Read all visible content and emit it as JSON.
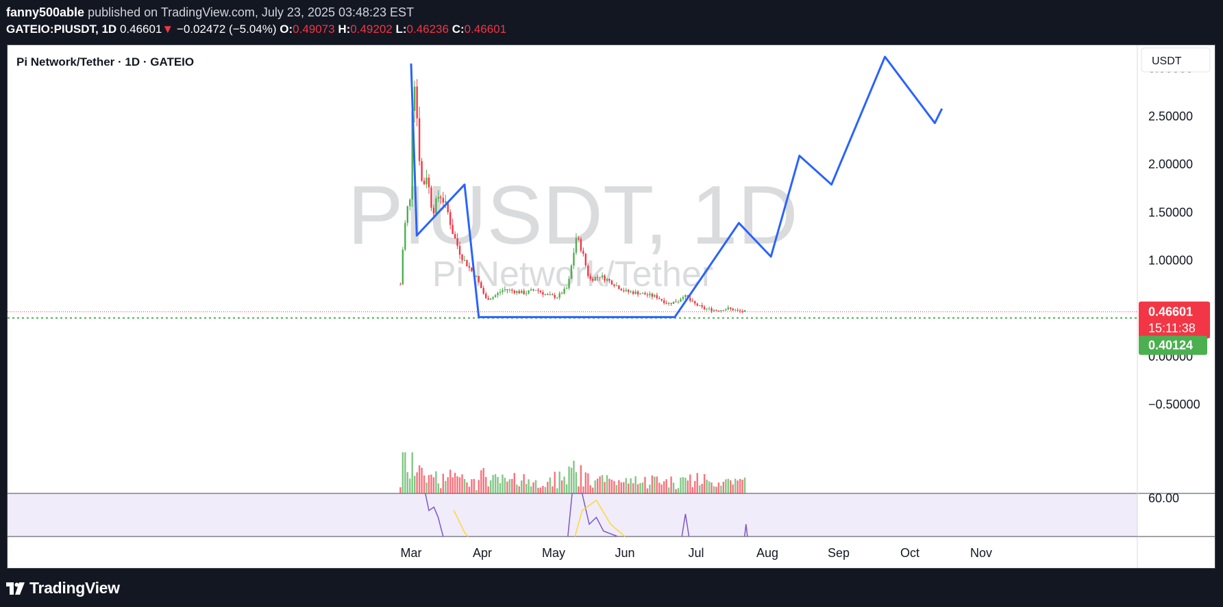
{
  "header": {
    "author": "fanny500able",
    "published": "published on TradingView.com, July 23, 2025 03:48:23 EST"
  },
  "symbol_line": {
    "symbol": "GATEIO:PIUSDT, 1D",
    "last": "0.46601",
    "arrow": "▼",
    "change": "−0.02472 (−5.04%)",
    "open_label": "O:",
    "open": "0.49073",
    "high_label": "H:",
    "high": "0.49202",
    "low_label": "L:",
    "low": "0.46236",
    "close_label": "C:",
    "close": "0.46601"
  },
  "pane": {
    "title": "Pi Network/Tether · 1D · GATEIO",
    "currency_button": "USDT",
    "watermark_symbol": "PIUSDT, 1D",
    "watermark_name": "Pi Network/Tether",
    "price_badge": "0.46601",
    "countdown": "15:11:38",
    "support_badge": "0.40124",
    "rsi_level": "60.00"
  },
  "footer": {
    "logo_text": "TradingView"
  },
  "colors": {
    "background": "#131722",
    "up": "#4caf50",
    "down": "#f23645",
    "projection": "#2962ff",
    "rsi_band": "#f0ecfa",
    "rsi_line": "#7e57c2",
    "rsi_ma": "#fdd835"
  },
  "chart_data": {
    "type": "candlestick",
    "symbol": "PIUSDT",
    "interval": "1D",
    "y_ticks": [
      -0.5,
      0,
      1.0,
      1.5,
      2.0,
      2.5,
      3.0
    ],
    "y_tick_labels": [
      "−0.50000",
      "0.00000",
      "1.00000",
      "1.50000",
      "2.00000",
      "2.50000",
      "3.00000"
    ],
    "x_tick_labels": [
      "Mar",
      "Apr",
      "May",
      "Jun",
      "Jul",
      "Aug",
      "Sep",
      "Oct",
      "Nov"
    ],
    "last_price": 0.46601,
    "support_level": 0.40124,
    "pattern_polyline": [
      {
        "month": 0.0,
        "price": 3.05
      },
      {
        "month": 0.08,
        "price": 1.26
      },
      {
        "month": 0.75,
        "price": 1.79
      },
      {
        "month": 0.95,
        "price": 0.41
      },
      {
        "month": 3.7,
        "price": 0.41
      },
      {
        "month": 4.6,
        "price": 1.39
      },
      {
        "month": 5.05,
        "price": 1.04
      },
      {
        "month": 5.45,
        "price": 2.09
      },
      {
        "month": 5.9,
        "price": 1.79
      },
      {
        "month": 6.65,
        "price": 3.12
      },
      {
        "month": 7.35,
        "price": 2.43
      },
      {
        "month": 7.45,
        "price": 2.58
      }
    ],
    "price_path": [
      {
        "month": -0.15,
        "price": 0.75
      },
      {
        "month": -0.1,
        "price": 1.3
      },
      {
        "month": -0.05,
        "price": 1.55
      },
      {
        "month": 0.0,
        "price": 1.65
      },
      {
        "month": 0.02,
        "price": 2.8
      },
      {
        "month": 0.06,
        "price": 2.9
      },
      {
        "month": 0.1,
        "price": 2.2
      },
      {
        "month": 0.16,
        "price": 1.75
      },
      {
        "month": 0.22,
        "price": 1.9
      },
      {
        "month": 0.3,
        "price": 1.5
      },
      {
        "month": 0.4,
        "price": 1.7
      },
      {
        "month": 0.5,
        "price": 1.55
      },
      {
        "month": 0.58,
        "price": 1.3
      },
      {
        "month": 0.7,
        "price": 1.05
      },
      {
        "month": 0.82,
        "price": 0.92
      },
      {
        "month": 0.92,
        "price": 0.82
      },
      {
        "month": 1.05,
        "price": 0.6
      },
      {
        "month": 1.15,
        "price": 0.62
      },
      {
        "month": 1.3,
        "price": 0.7
      },
      {
        "month": 1.45,
        "price": 0.68
      },
      {
        "month": 1.6,
        "price": 0.66
      },
      {
        "month": 1.75,
        "price": 0.7
      },
      {
        "month": 1.9,
        "price": 0.64
      },
      {
        "month": 2.05,
        "price": 0.62
      },
      {
        "month": 2.2,
        "price": 0.72
      },
      {
        "month": 2.32,
        "price": 1.25
      },
      {
        "month": 2.4,
        "price": 1.1
      },
      {
        "month": 2.5,
        "price": 0.8
      },
      {
        "month": 2.65,
        "price": 0.84
      },
      {
        "month": 2.8,
        "price": 0.78
      },
      {
        "month": 3.0,
        "price": 0.68
      },
      {
        "month": 3.2,
        "price": 0.66
      },
      {
        "month": 3.45,
        "price": 0.62
      },
      {
        "month": 3.6,
        "price": 0.55
      },
      {
        "month": 3.75,
        "price": 0.58
      },
      {
        "month": 3.82,
        "price": 0.64
      },
      {
        "month": 3.95,
        "price": 0.56
      },
      {
        "month": 4.1,
        "price": 0.5
      },
      {
        "month": 4.3,
        "price": 0.48
      },
      {
        "month": 4.45,
        "price": 0.5
      },
      {
        "month": 4.6,
        "price": 0.47
      },
      {
        "month": 4.7,
        "price": 0.47
      }
    ]
  }
}
